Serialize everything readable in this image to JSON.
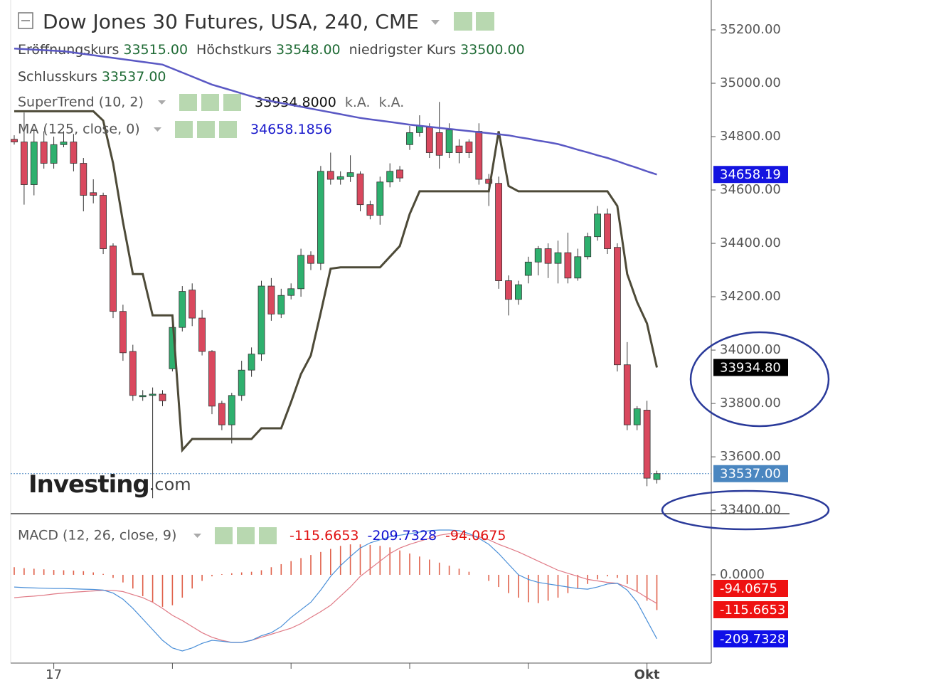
{
  "chart_data": [
    {
      "type": "candlestick",
      "title": "Dow Jones 30 Futures, USA, 240, CME",
      "readout": [
        {
          "name": "Eröffnungskurs",
          "value": "33515.00"
        },
        {
          "name": "Höchstkurs",
          "value": "33548.00"
        },
        {
          "name": "niedrigster Kurs",
          "value": "33500.00"
        },
        {
          "name": "Schlusskurs",
          "value": "33537.00"
        }
      ],
      "logo": [
        "Investing",
        ".com"
      ],
      "categories": [
        null,
        null,
        null,
        null,
        "17",
        null,
        null,
        null,
        null,
        null,
        null,
        null,
        null,
        null,
        null,
        null,
        null,
        null,
        null,
        null,
        null,
        null,
        null,
        null,
        null,
        null,
        null,
        null,
        null,
        null,
        null,
        null,
        null,
        null,
        null,
        null,
        null,
        null,
        null,
        null,
        null,
        null,
        null,
        null,
        null,
        null,
        null,
        null,
        null,
        null,
        null,
        null,
        null,
        null,
        null,
        null,
        null,
        null,
        null,
        null,
        null,
        null,
        null,
        null,
        "Okt",
        null
      ],
      "open": [
        34790,
        34780,
        34620,
        34780,
        34700,
        34770,
        34780,
        34700,
        34590,
        34580,
        34390,
        34145,
        33995,
        33825,
        33830,
        33835,
        33930,
        34085,
        34225,
        34120,
        33995,
        33800,
        33720,
        33830,
        33925,
        33985,
        34240,
        34135,
        34205,
        34230,
        34355,
        34325,
        34670,
        34640,
        34650,
        34660,
        34545,
        34505,
        34630,
        34675,
        34770,
        34815,
        34835,
        34815,
        34740,
        34765,
        34780,
        34820,
        34640,
        34625,
        34260,
        34190,
        34280,
        34330,
        34380,
        34325,
        34365,
        34270,
        34350,
        34425,
        34510,
        34385,
        33945,
        33720,
        33775,
        33515
      ],
      "high": [
        34805,
        34890,
        34830,
        34820,
        34800,
        34820,
        34810,
        34720,
        34640,
        34590,
        34400,
        34170,
        34020,
        33850,
        33860,
        33850,
        34100,
        34240,
        34250,
        34150,
        34000,
        33810,
        33840,
        33960,
        34010,
        34260,
        34270,
        34230,
        34250,
        34380,
        34370,
        34690,
        34740,
        34670,
        34730,
        34670,
        34560,
        34650,
        34700,
        34690,
        34840,
        34880,
        34850,
        34930,
        34850,
        34790,
        34790,
        34850,
        34660,
        34650,
        34280,
        34260,
        34350,
        34390,
        34400,
        34410,
        34440,
        34380,
        34440,
        34540,
        34530,
        34400,
        34030,
        33790,
        33810,
        33548
      ],
      "low": [
        34770,
        34545,
        34580,
        34680,
        34680,
        34760,
        34670,
        34520,
        34550,
        34360,
        34120,
        33960,
        33810,
        33810,
        33445,
        33790,
        33920,
        34070,
        34090,
        33980,
        33760,
        33700,
        33650,
        33810,
        33900,
        33960,
        34110,
        34120,
        34190,
        34200,
        34300,
        34300,
        34620,
        34620,
        34630,
        34520,
        34490,
        34470,
        34610,
        34630,
        34750,
        34800,
        34720,
        34680,
        34720,
        34700,
        34720,
        34620,
        34540,
        34230,
        34130,
        34170,
        34250,
        34280,
        34270,
        34250,
        34250,
        34260,
        34340,
        34410,
        34360,
        33920,
        33700,
        33700,
        33490,
        33500
      ],
      "close": [
        34780,
        34620,
        34780,
        34700,
        34770,
        34780,
        34700,
        34580,
        34580,
        34380,
        34145,
        33990,
        33830,
        33830,
        33835,
        33810,
        34085,
        34220,
        34120,
        33995,
        33790,
        33720,
        33830,
        33925,
        33985,
        34240,
        34135,
        34205,
        34230,
        34355,
        34325,
        34670,
        34640,
        34650,
        34665,
        34545,
        34505,
        34630,
        34670,
        34645,
        34815,
        34840,
        34740,
        34730,
        34825,
        34740,
        34740,
        34640,
        34625,
        34260,
        34190,
        34245,
        34330,
        34380,
        34325,
        34365,
        34270,
        34350,
        34425,
        34510,
        34380,
        33945,
        33720,
        33780,
        33520,
        33537
      ],
      "up_color": "#2eb06e",
      "down_color": "#d9485e",
      "overlays": [
        {
          "name": "SuperTrend (10, 2)",
          "readout": [
            "33934.8000",
            "k.A.",
            "k.A."
          ],
          "readout_colors": [
            "#111111",
            "#666666",
            "#666666"
          ],
          "color": "#4d4a38",
          "values": [
            34895,
            34895,
            34895,
            34895,
            34895,
            34895,
            34895,
            34895,
            34895,
            34860,
            34700,
            34480,
            34285,
            34285,
            34130,
            34130,
            34130,
            33625,
            33667,
            33667,
            33667,
            33667,
            33667,
            33667,
            33667,
            33707,
            33707,
            33707,
            33805,
            33910,
            33980,
            34140,
            34305,
            34310,
            34310,
            34310,
            34310,
            34310,
            34350,
            34390,
            34510,
            34595,
            34595,
            34595,
            34595,
            34595,
            34595,
            34595,
            34595,
            34820,
            34615,
            34595,
            34595,
            34595,
            34595,
            34595,
            34595,
            34595,
            34595,
            34595,
            34595,
            34540,
            34285,
            34180,
            34100,
            33934.8
          ]
        },
        {
          "name": "MA (125, close, 0)",
          "readout": [
            "34658.1856"
          ],
          "readout_colors": [
            "#1a1acc"
          ],
          "color": "#5a58c4",
          "values": [
            35130,
            35128,
            35126,
            35124,
            35122,
            35120,
            35115,
            35110,
            35105,
            35100,
            35095,
            35090,
            35085,
            35080,
            35075,
            35070,
            35055,
            35040,
            35025,
            35010,
            34995,
            34984,
            34973,
            34962,
            34951,
            34940,
            34933,
            34926,
            34919,
            34912,
            34905,
            34898,
            34891,
            34884,
            34877,
            34870,
            34865,
            34860,
            34855,
            34850,
            34845,
            34841,
            34837,
            34833,
            34829,
            34825,
            34821,
            34817,
            34813,
            34809,
            34805,
            34798,
            34792,
            34785,
            34779,
            34772,
            34762,
            34751,
            34741,
            34730,
            34720,
            34708,
            34695,
            34683,
            34670,
            34658
          ]
        }
      ],
      "ylim": [
        33387,
        35312
      ],
      "yticks": [
        {
          "value": 33400,
          "label": "33400.00"
        },
        {
          "value": 33600,
          "label": "33600.00"
        },
        {
          "value": 33800,
          "label": "33800.00"
        },
        {
          "value": 34000,
          "label": "34000.00"
        },
        {
          "value": 34200,
          "label": "34200.00"
        },
        {
          "value": 34400,
          "label": "34400.00"
        },
        {
          "value": 34600,
          "label": "34600.00"
        },
        {
          "value": 34800,
          "label": "34800.00"
        },
        {
          "value": 35000,
          "label": "35000.00"
        },
        {
          "value": 35200,
          "label": "35200.00"
        }
      ],
      "badges": [
        {
          "value": 34658.19,
          "label": "34658.19",
          "color": "#1414e0"
        },
        {
          "value": 33934.8,
          "label": "33934.80",
          "color": "#000000"
        },
        {
          "value": 33537,
          "label": "33537.00",
          "color": "#4a86c0"
        }
      ]
    },
    {
      "type": "macd",
      "name": "MACD (12, 26, close, 9)",
      "histogram": {
        "color": "#e0604a",
        "readout_color": "#e01010",
        "values": [
          25,
          22,
          20,
          18,
          16,
          15,
          14,
          12,
          8,
          3,
          -10,
          -25,
          -45,
          -70,
          -90,
          -105,
          -100,
          -75,
          -45,
          -20,
          -5,
          2,
          5,
          8,
          10,
          15,
          25,
          35,
          45,
          55,
          65,
          75,
          85,
          95,
          100,
          100,
          98,
          95,
          90,
          80,
          70,
          60,
          50,
          40,
          30,
          20,
          10,
          0,
          -20,
          -40,
          -60,
          -75,
          -90,
          -93,
          -85,
          -75,
          -60,
          -45,
          -30,
          -15,
          -5,
          -10,
          -30,
          -55,
          -85,
          -115.6653
        ]
      },
      "macd": {
        "color": "#4a8fd8",
        "readout_color": "#1010d0",
        "values": [
          -40,
          -42,
          -43,
          -44,
          -45,
          -45,
          -46,
          -47,
          -48,
          -50,
          -60,
          -80,
          -110,
          -145,
          -180,
          -215,
          -240,
          -250,
          -240,
          -225,
          -215,
          -218,
          -222,
          -222,
          -215,
          -200,
          -190,
          -170,
          -140,
          -115,
          -90,
          -50,
          -5,
          30,
          60,
          88,
          105,
          115,
          125,
          130,
          135,
          140,
          145,
          147,
          147,
          145,
          135,
          120,
          100,
          70,
          35,
          0,
          -15,
          -25,
          -30,
          -35,
          -40,
          -45,
          -47,
          -40,
          -30,
          -28,
          -50,
          -90,
          -150,
          -209.7328
        ]
      },
      "signal": {
        "color": "#e07a86",
        "readout_color": "#e01010",
        "values": [
          -75,
          -72,
          -70,
          -67,
          -63,
          -60,
          -57,
          -55,
          -53,
          -51,
          -51,
          -55,
          -65,
          -75,
          -90,
          -110,
          -133,
          -150,
          -170,
          -190,
          -205,
          -215,
          -222,
          -222,
          -215,
          -205,
          -195,
          -185,
          -175,
          -160,
          -140,
          -121,
          -100,
          -70,
          -40,
          -5,
          20,
          45,
          70,
          88,
          100,
          110,
          120,
          130,
          135,
          135,
          130,
          125,
          115,
          100,
          88,
          75,
          60,
          45,
          30,
          15,
          5,
          -5,
          -15,
          -20,
          -25,
          -28,
          -40,
          -55,
          -75,
          -94.0675
        ]
      },
      "ylim": [
        -285,
        189
      ],
      "yticks": [
        {
          "value": 0,
          "label": "0.0000"
        }
      ],
      "badge_colors": [
        "#ee1111",
        "#ee1111",
        "#1010e8"
      ]
    }
  ]
}
